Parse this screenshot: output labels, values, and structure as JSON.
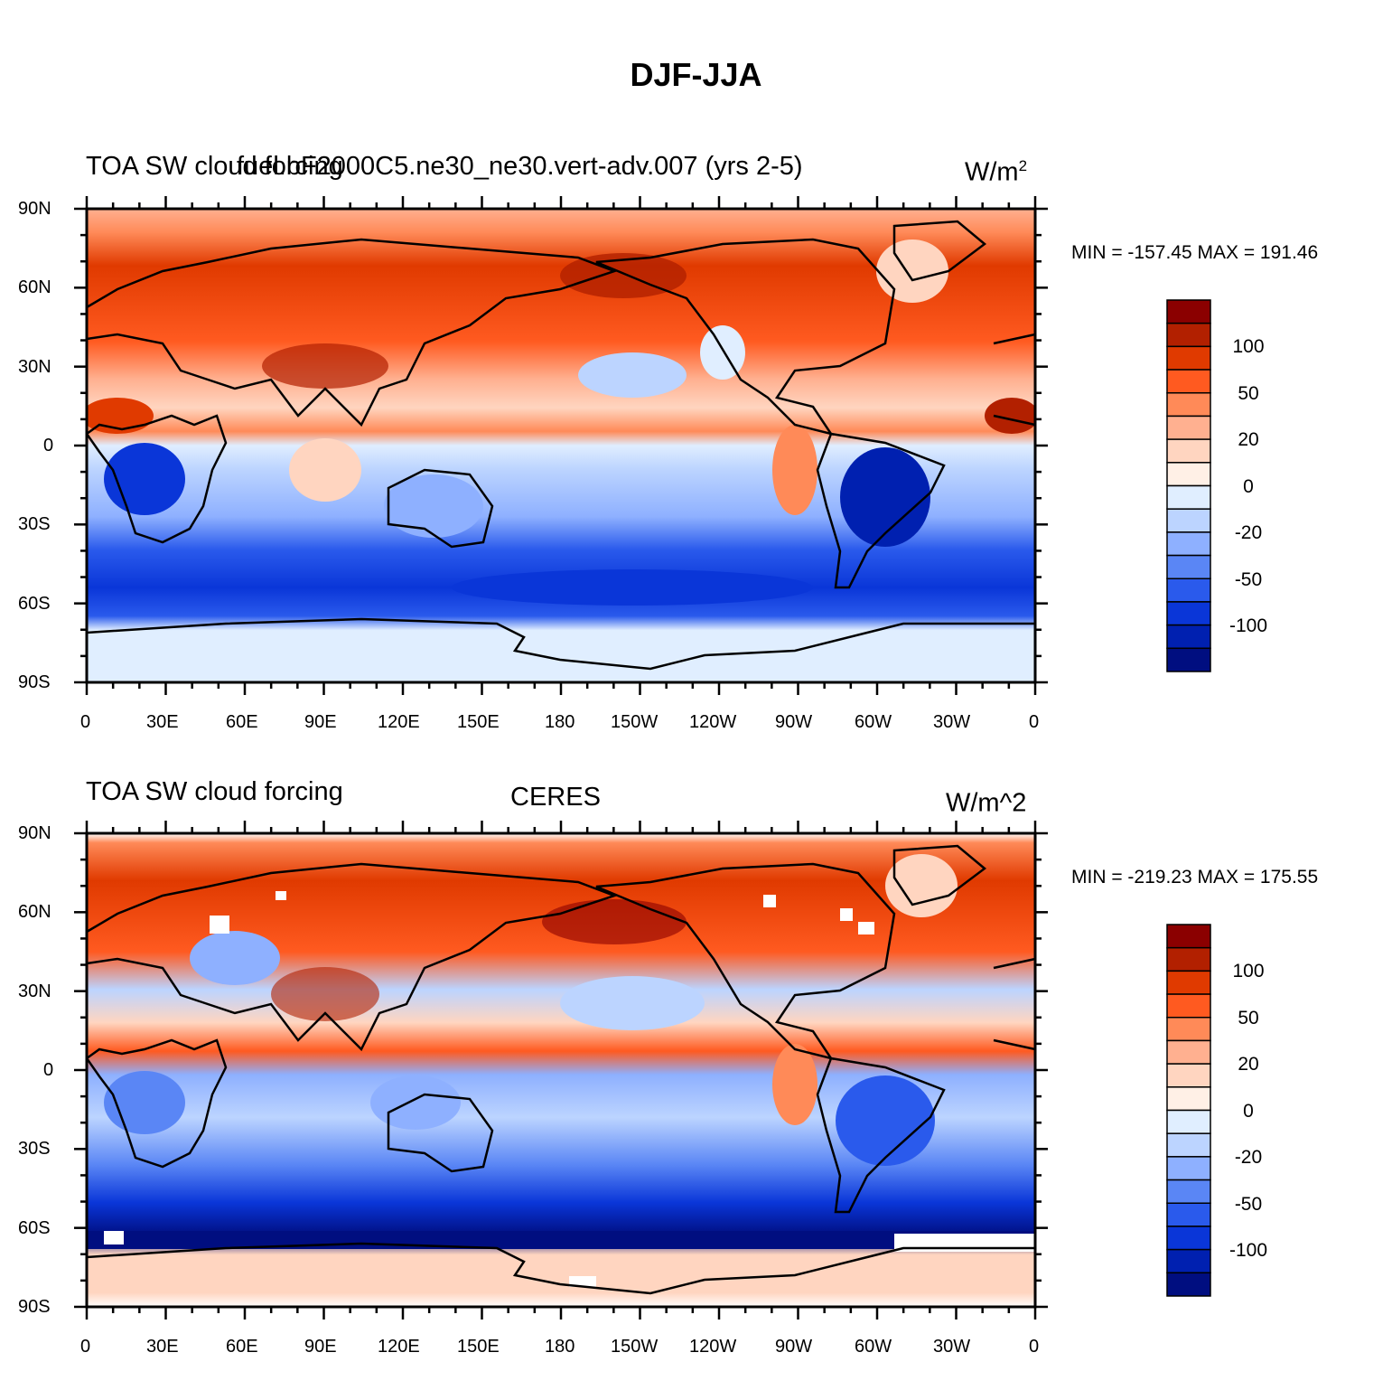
{
  "title": "DJF-JJA",
  "panels": [
    {
      "left_label": "TOA SW cloud forcing",
      "center_label": "fuel.bF2000C5.ne30_ne30.vert-adv.007 (yrs 2-5)",
      "units_base": "W/m",
      "units_sup": "2",
      "min_max": "MIN = -157.45 MAX = 191.46"
    },
    {
      "left_label": "TOA SW cloud forcing",
      "center_label": "CERES",
      "units_base": "W/m^2",
      "units_sup": "",
      "min_max": "MIN = -219.23 MAX = 175.55"
    }
  ],
  "lat_ticks": [
    "90N",
    "60N",
    "30N",
    "0",
    "30S",
    "60S",
    "90S"
  ],
  "lon_ticks": [
    "0",
    "30E",
    "60E",
    "90E",
    "120E",
    "150E",
    "180",
    "150W",
    "120W",
    "90W",
    "60W",
    "30W",
    "0"
  ],
  "colorbar": {
    "labels": [
      "100",
      "50",
      "20",
      "0",
      "-20",
      "-50",
      "-100"
    ],
    "colors": [
      "#8b0000",
      "#b22000",
      "#e03a00",
      "#ff5a20",
      "#ff8a58",
      "#ffb090",
      "#ffd5c0",
      "#fff0e6",
      "#e0eeff",
      "#bcd4ff",
      "#8eb0ff",
      "#5a86f5",
      "#2a5aec",
      "#0a36d8",
      "#0020b0",
      "#000e80"
    ]
  },
  "chart_data": {
    "type": "heatmap",
    "map_projection": "cylindrical equidistant",
    "lat_range": [
      -90,
      90
    ],
    "lon_range": [
      0,
      360
    ],
    "color_levels": [
      100,
      50,
      20,
      0,
      -20,
      -50,
      -100
    ],
    "maps": [
      {
        "name": "fuel.bF2000C5.ne30_ne30.vert-adv.007 (yrs 2-5)",
        "min": -157.45,
        "max": 191.46
      },
      {
        "name": "CERES",
        "min": -219.23,
        "max": 175.55
      }
    ]
  }
}
